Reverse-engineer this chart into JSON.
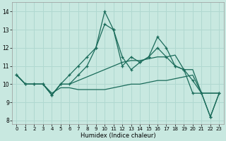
{
  "xlabel": "Humidex (Indice chaleur)",
  "bg_color": "#c8e8e0",
  "grid_color": "#b0d8d0",
  "line_color": "#1a6b5a",
  "xlim": [
    -0.5,
    23.5
  ],
  "ylim": [
    7.8,
    14.5
  ],
  "xticks": [
    0,
    1,
    2,
    3,
    4,
    5,
    6,
    7,
    8,
    9,
    10,
    11,
    12,
    13,
    14,
    15,
    16,
    17,
    18,
    19,
    20,
    21,
    22,
    23
  ],
  "yticks": [
    8,
    9,
    10,
    11,
    12,
    13,
    14
  ],
  "line1_x": [
    0,
    1,
    2,
    3,
    4,
    5,
    6,
    7,
    8,
    9,
    10,
    11,
    12,
    13,
    14,
    15,
    16,
    17,
    18,
    19,
    20,
    21,
    22,
    23
  ],
  "line1_y": [
    10.5,
    10.0,
    10.0,
    10.0,
    9.4,
    10.0,
    10.5,
    11.0,
    11.5,
    12.0,
    13.3,
    13.0,
    11.0,
    11.5,
    11.2,
    11.5,
    12.6,
    12.0,
    11.0,
    10.8,
    10.2,
    9.5,
    8.2,
    9.5
  ],
  "line2_x": [
    0,
    1,
    2,
    3,
    4,
    5,
    6,
    7,
    8,
    9,
    10,
    11,
    12,
    13,
    14,
    15,
    16,
    17,
    18,
    19,
    20,
    21,
    22,
    23
  ],
  "line2_y": [
    10.5,
    10.0,
    10.0,
    10.0,
    9.4,
    10.0,
    10.0,
    10.5,
    11.0,
    12.0,
    14.0,
    13.0,
    11.5,
    10.8,
    11.2,
    11.5,
    12.0,
    11.5,
    11.0,
    10.8,
    9.5,
    9.5,
    8.2,
    9.5
  ],
  "line3_x": [
    0,
    1,
    2,
    3,
    4,
    5,
    6,
    7,
    8,
    9,
    10,
    11,
    12,
    13,
    14,
    15,
    16,
    17,
    18,
    19,
    20,
    21,
    22,
    23
  ],
  "line3_y": [
    10.5,
    10.0,
    10.0,
    10.0,
    9.4,
    10.0,
    10.0,
    10.2,
    10.4,
    10.6,
    10.8,
    11.0,
    11.2,
    11.3,
    11.3,
    11.4,
    11.5,
    11.5,
    11.6,
    10.8,
    10.8,
    9.5,
    9.5,
    9.5
  ],
  "line4_x": [
    0,
    1,
    2,
    3,
    4,
    5,
    6,
    7,
    8,
    9,
    10,
    11,
    12,
    13,
    14,
    15,
    16,
    17,
    18,
    19,
    20,
    21,
    22,
    23
  ],
  "line4_y": [
    10.5,
    10.0,
    10.0,
    10.0,
    9.5,
    9.8,
    9.8,
    9.7,
    9.7,
    9.7,
    9.7,
    9.8,
    9.9,
    10.0,
    10.0,
    10.1,
    10.2,
    10.2,
    10.3,
    10.4,
    10.5,
    9.5,
    9.5,
    9.5
  ]
}
